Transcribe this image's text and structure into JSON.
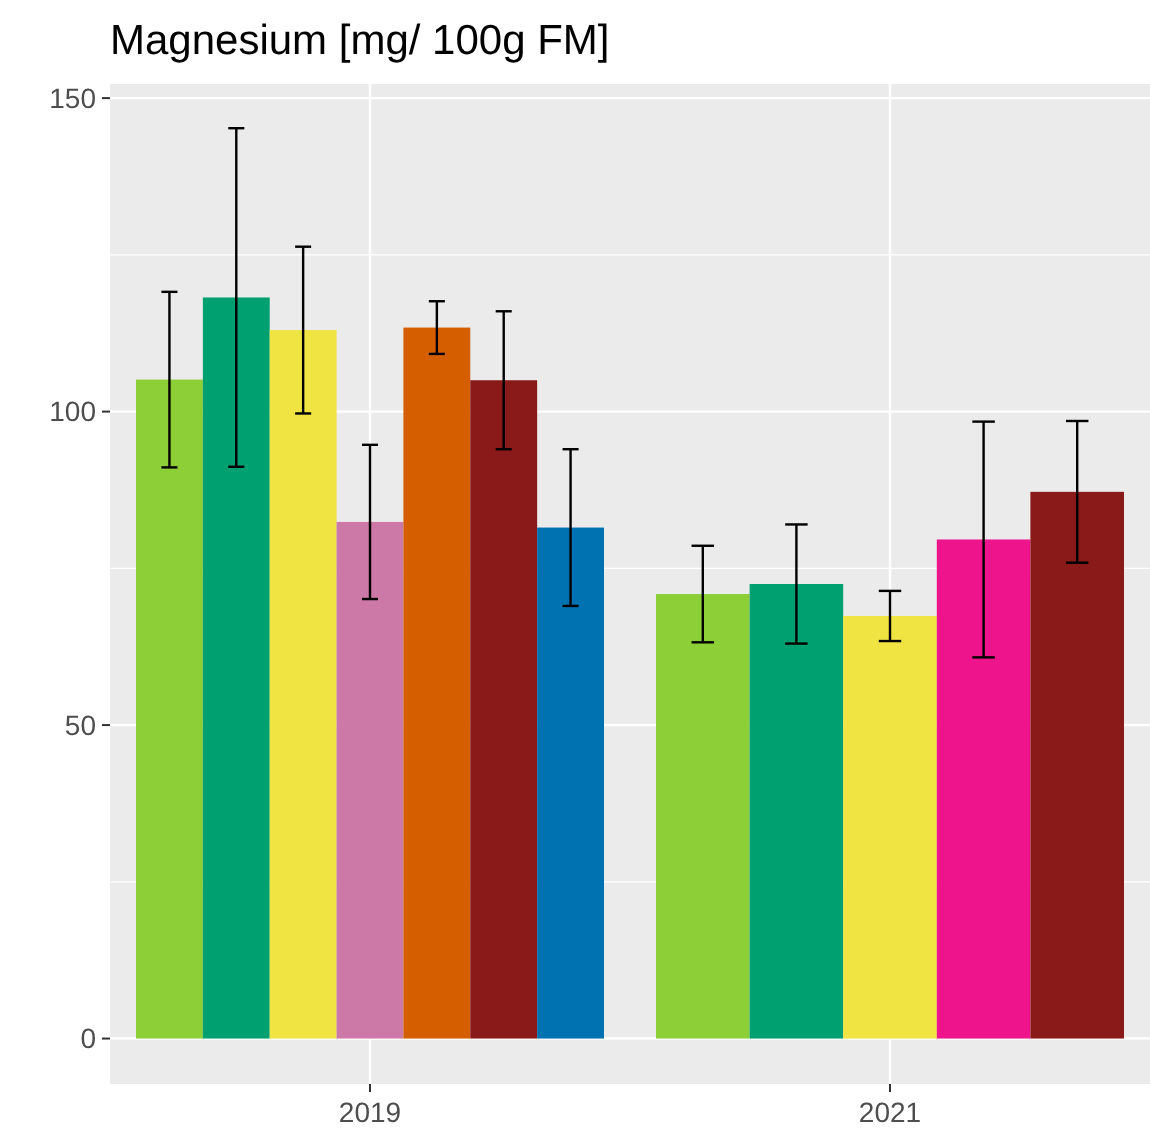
{
  "chart_data": {
    "type": "bar",
    "title": "Magnesium [mg/ 100g FM]",
    "categories": [
      "2019",
      "2021"
    ],
    "series": [
      {
        "color": "#8ccf36",
        "values": [
          105.1,
          70.9
        ],
        "errors": [
          14,
          7.7
        ]
      },
      {
        "color": "#00a070",
        "values": [
          118.2,
          72.5
        ],
        "errors": [
          27,
          9.5
        ]
      },
      {
        "color": "#f0e442",
        "values": [
          113,
          67.4
        ],
        "errors": [
          13.3,
          4
        ]
      },
      {
        "color": "#cc79a7",
        "values": [
          82.4,
          null
        ],
        "errors": [
          12.3,
          null
        ]
      },
      {
        "color": "#d55e00",
        "values": [
          113.4,
          null
        ],
        "errors": [
          4.2,
          null
        ]
      },
      {
        "color": "#ee148c",
        "values": [
          null,
          79.6
        ],
        "errors": [
          null,
          18.8
        ]
      },
      {
        "color": "#8a1a1a",
        "values": [
          105,
          87.2
        ],
        "errors": [
          11,
          11.3
        ]
      },
      {
        "color": "#0072b2",
        "values": [
          81.5,
          null
        ],
        "errors": [
          12.5,
          null
        ]
      }
    ],
    "ylim": [
      -7.25,
      152.25
    ],
    "yticks": [
      0,
      50,
      100,
      150
    ],
    "grid": true
  }
}
